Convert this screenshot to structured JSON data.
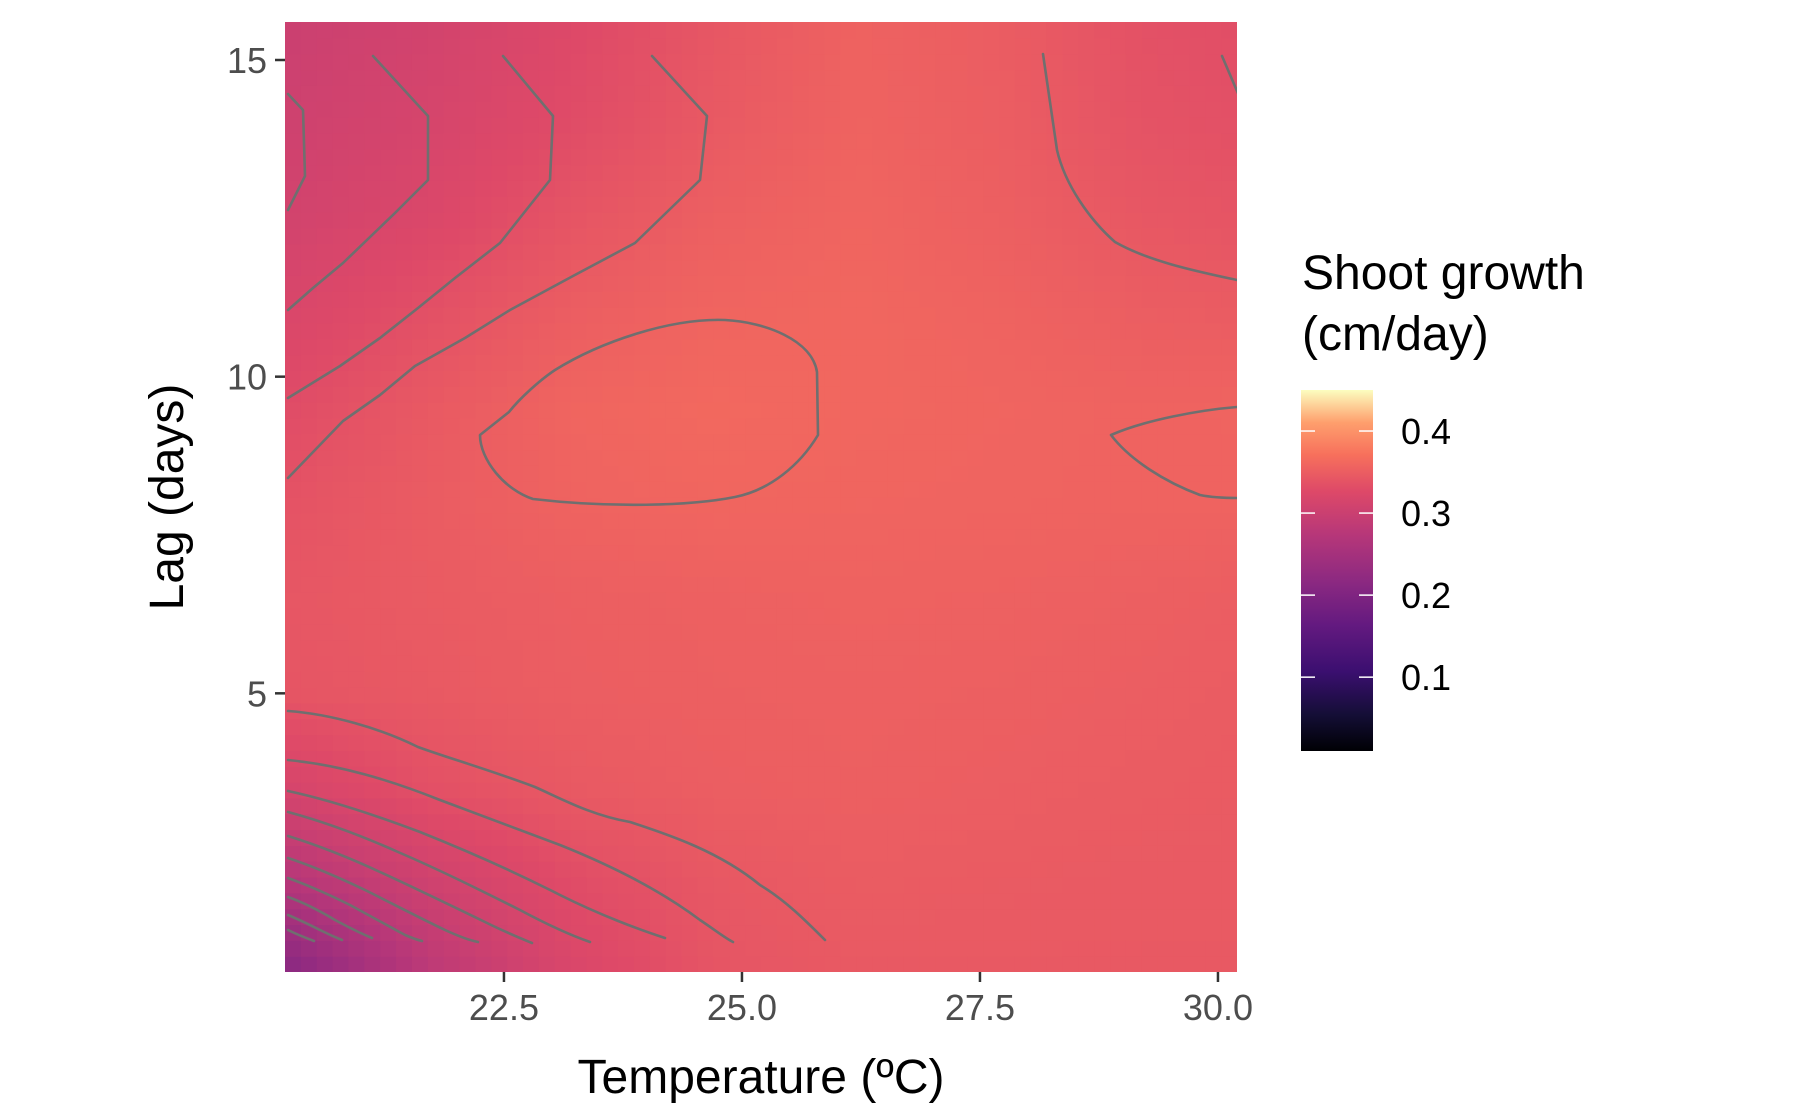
{
  "chart_data": {
    "type": "heatmap",
    "xlabel": "Temperature (ºC)",
    "ylabel": "Lag (days)",
    "xlim": [
      20.2,
      30.2
    ],
    "ylim": [
      0.6,
      15.6
    ],
    "x_ticks": [
      {
        "value": 22.5,
        "label": "22.5"
      },
      {
        "value": 25.0,
        "label": "25.0"
      },
      {
        "value": 27.5,
        "label": "27.5"
      },
      {
        "value": 30.0,
        "label": "30.0"
      }
    ],
    "y_ticks": [
      {
        "value": 5,
        "label": "5"
      },
      {
        "value": 10,
        "label": "10"
      },
      {
        "value": 15,
        "label": "15"
      }
    ],
    "legend": {
      "title_lines": [
        "Shoot growth",
        "(cm/day)"
      ],
      "position": "right",
      "palette": "magma",
      "range": [
        0.01,
        0.45
      ],
      "breaks": [
        {
          "value": 0.1,
          "label": "0.1"
        },
        {
          "value": 0.2,
          "label": "0.2"
        },
        {
          "value": 0.3,
          "label": "0.3"
        },
        {
          "value": 0.4,
          "label": "0.4"
        }
      ]
    },
    "surface": {
      "x": [
        20.2,
        21.7,
        23.2,
        24.7,
        26.2,
        27.7,
        29.2,
        30.2
      ],
      "y": [
        0.6,
        2.0,
        3.5,
        5.0,
        6.5,
        8.0,
        9.5,
        11.0,
        12.5,
        14.0,
        15.6
      ],
      "z": [
        [
          0.21,
          0.28,
          0.32,
          0.34,
          0.345,
          0.345,
          0.345,
          0.345
        ],
        [
          0.27,
          0.305,
          0.33,
          0.343,
          0.348,
          0.347,
          0.346,
          0.346
        ],
        [
          0.315,
          0.335,
          0.345,
          0.35,
          0.352,
          0.35,
          0.348,
          0.347
        ],
        [
          0.34,
          0.345,
          0.35,
          0.352,
          0.353,
          0.352,
          0.35,
          0.348
        ],
        [
          0.342,
          0.347,
          0.351,
          0.353,
          0.355,
          0.354,
          0.352,
          0.35
        ],
        [
          0.338,
          0.348,
          0.356,
          0.359,
          0.358,
          0.357,
          0.356,
          0.356
        ],
        [
          0.33,
          0.345,
          0.358,
          0.362,
          0.36,
          0.358,
          0.356,
          0.357
        ],
        [
          0.32,
          0.335,
          0.35,
          0.358,
          0.36,
          0.356,
          0.35,
          0.348
        ],
        [
          0.31,
          0.322,
          0.34,
          0.352,
          0.358,
          0.352,
          0.343,
          0.34
        ],
        [
          0.305,
          0.315,
          0.33,
          0.345,
          0.356,
          0.35,
          0.338,
          0.335
        ],
        [
          0.3,
          0.31,
          0.325,
          0.342,
          0.355,
          0.349,
          0.336,
          0.332
        ]
      ],
      "contour_step": 0.01
    },
    "grid": false
  }
}
